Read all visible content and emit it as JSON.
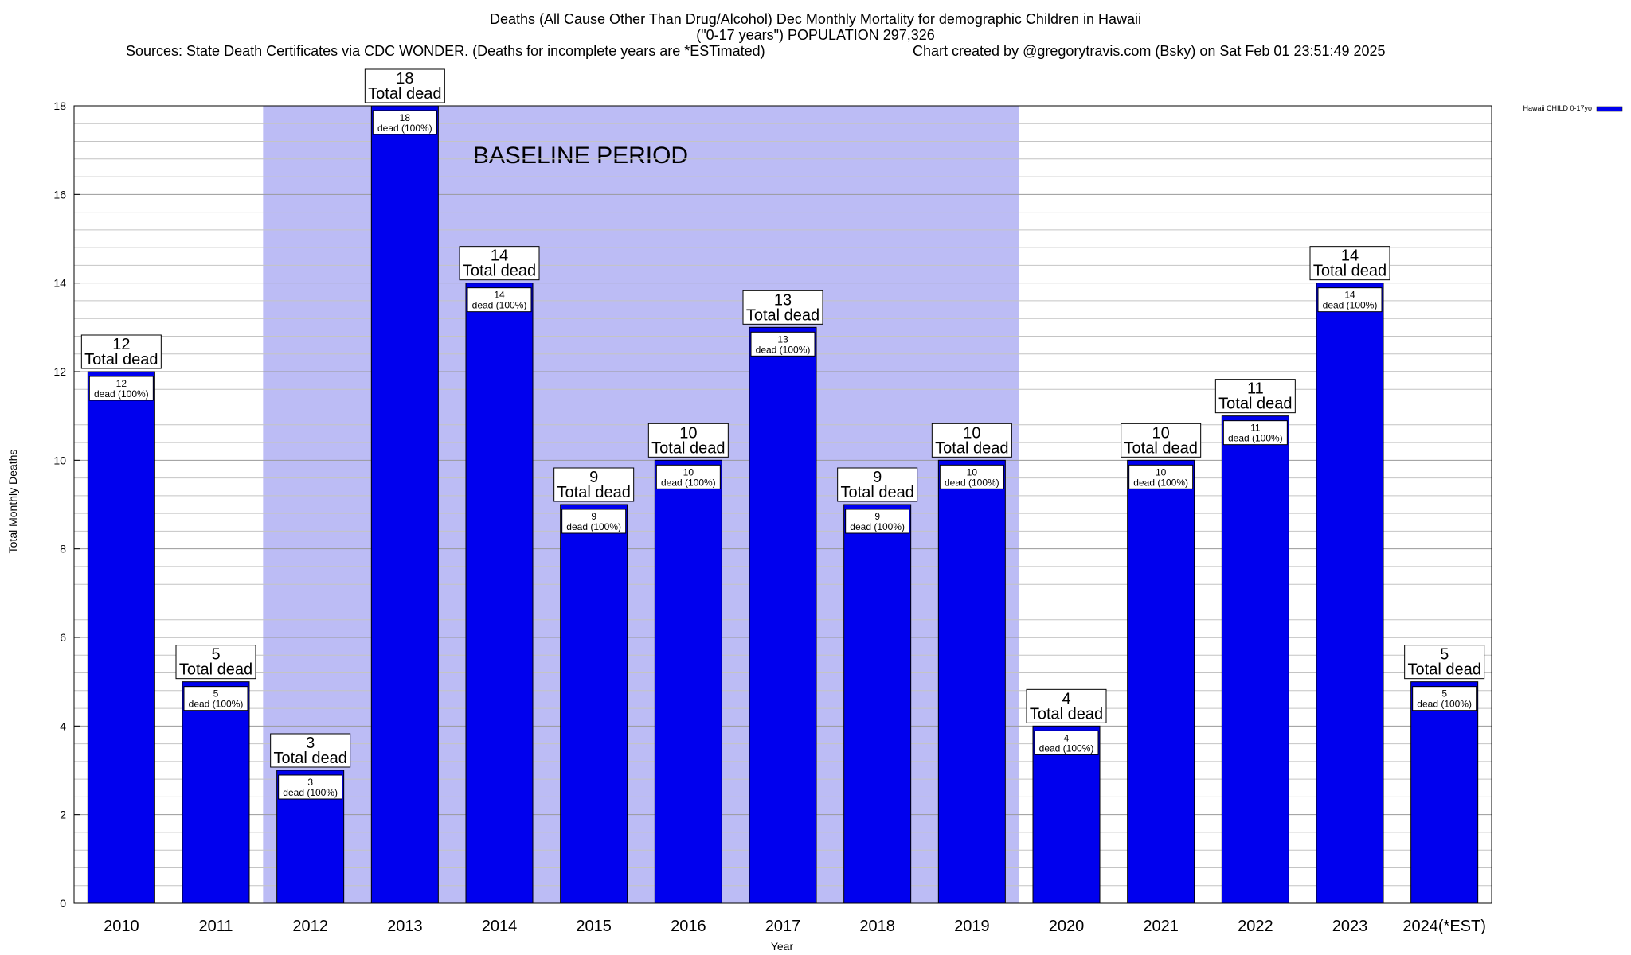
{
  "chart_data": {
    "type": "bar",
    "title": "Deaths (All Cause Other Than Drug/Alcohol) Dec Monthly Mortality for demographic Children in Hawaii",
    "subtitle": "(\"0-17 years\") POPULATION 297,326",
    "source_line": "Sources: State Death Certificates via CDC WONDER. (Deaths for incomplete years are *ESTimated)",
    "credit_line": "Chart created by @gregorytravis.com (Bsky) on Sat Feb 01 23:51:49 2025",
    "xlabel": "Year",
    "ylabel": "Total Monthly Deaths",
    "ylim": [
      0,
      18
    ],
    "yticks": [
      0,
      2,
      4,
      6,
      8,
      10,
      12,
      14,
      16,
      18
    ],
    "grid": true,
    "categories": [
      "2010",
      "2011",
      "2012",
      "2013",
      "2014",
      "2015",
      "2016",
      "2017",
      "2018",
      "2019",
      "2020",
      "2021",
      "2022",
      "2023",
      "2024(*EST)"
    ],
    "series": [
      {
        "name": "Hawaii CHILD 0-17yo",
        "color": "#0000ee",
        "values": [
          12,
          5,
          3,
          18,
          14,
          9,
          10,
          13,
          9,
          10,
          4,
          10,
          11,
          14,
          5
        ]
      }
    ],
    "total_label_suffix": "Total dead",
    "inner_label_suffix": "dead (100%)",
    "baseline_period": {
      "label": "BASELINE PERIOD",
      "start": "2012",
      "end": "2019",
      "color": "#bcbcf5"
    },
    "legend_position": "top-right"
  }
}
